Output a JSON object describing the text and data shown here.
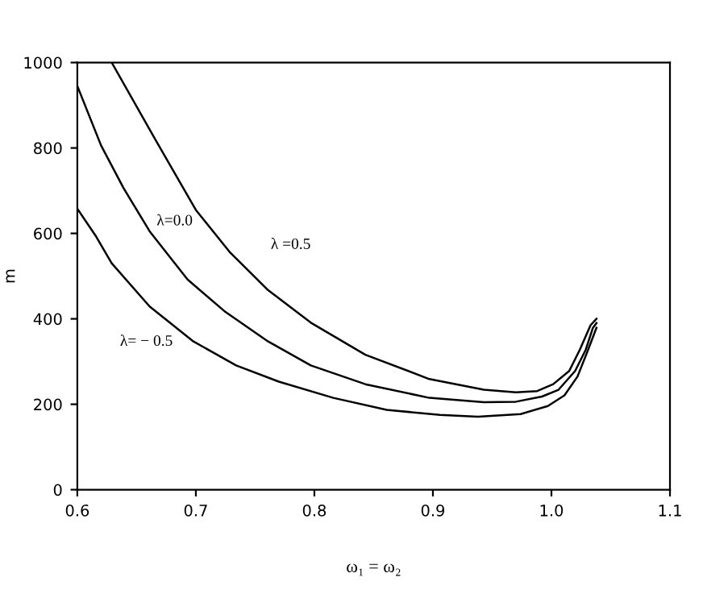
{
  "chart_data": {
    "type": "line",
    "xlabel": "ω₁ = ω₂",
    "ylabel": "m",
    "xlim": [
      0.6,
      1.1
    ],
    "xticks": [
      {
        "value": 0.6,
        "label": "0.6"
      },
      {
        "value": 0.7,
        "label": "0.7"
      },
      {
        "value": 0.8,
        "label": "0.8"
      },
      {
        "value": 0.9,
        "label": "0.9"
      },
      {
        "value": 1.0,
        "label": "1.0"
      },
      {
        "value": 1.1,
        "label": "1.1"
      }
    ],
    "ylim": [
      0,
      1000
    ],
    "yticks": [
      0,
      200,
      400,
      600,
      800,
      1000
    ],
    "grid": false,
    "marker": "none",
    "line_style": "solid",
    "series": [
      {
        "name": "λ =0.5",
        "color": "#000000",
        "x": [
          0.629,
          0.666,
          0.7,
          0.729,
          0.761,
          0.797,
          0.843,
          0.897,
          0.943,
          0.97,
          0.988,
          1.0015,
          1.015,
          1.024,
          1.033,
          1.038
        ],
        "values": [
          1000,
          819,
          655,
          555,
          467,
          391,
          316,
          259,
          234,
          228,
          231,
          247,
          278,
          328,
          385,
          400
        ]
      },
      {
        "name": "λ=0.0",
        "color": "#000000",
        "x": [
          0.6,
          0.62,
          0.639,
          0.661,
          0.693,
          0.725,
          0.761,
          0.797,
          0.843,
          0.897,
          0.943,
          0.97,
          0.992,
          1.006,
          1.02,
          1.029,
          1.035,
          1.038
        ],
        "values": [
          945,
          806,
          706,
          605,
          492,
          416,
          347,
          291,
          247,
          215,
          205,
          206,
          218,
          234,
          278,
          328,
          379,
          390
        ]
      },
      {
        "name": "λ= − 0.5",
        "color": "#000000",
        "x": [
          0.6,
          0.616,
          0.629,
          0.661,
          0.698,
          0.734,
          0.77,
          0.816,
          0.861,
          0.906,
          0.938,
          0.974,
          0.997,
          1.011,
          1.022,
          1.031,
          1.038
        ],
        "values": [
          658,
          592,
          530,
          429,
          347,
          291,
          253,
          215,
          187,
          175,
          171,
          177,
          196,
          221,
          265,
          328,
          379
        ]
      }
    ]
  }
}
